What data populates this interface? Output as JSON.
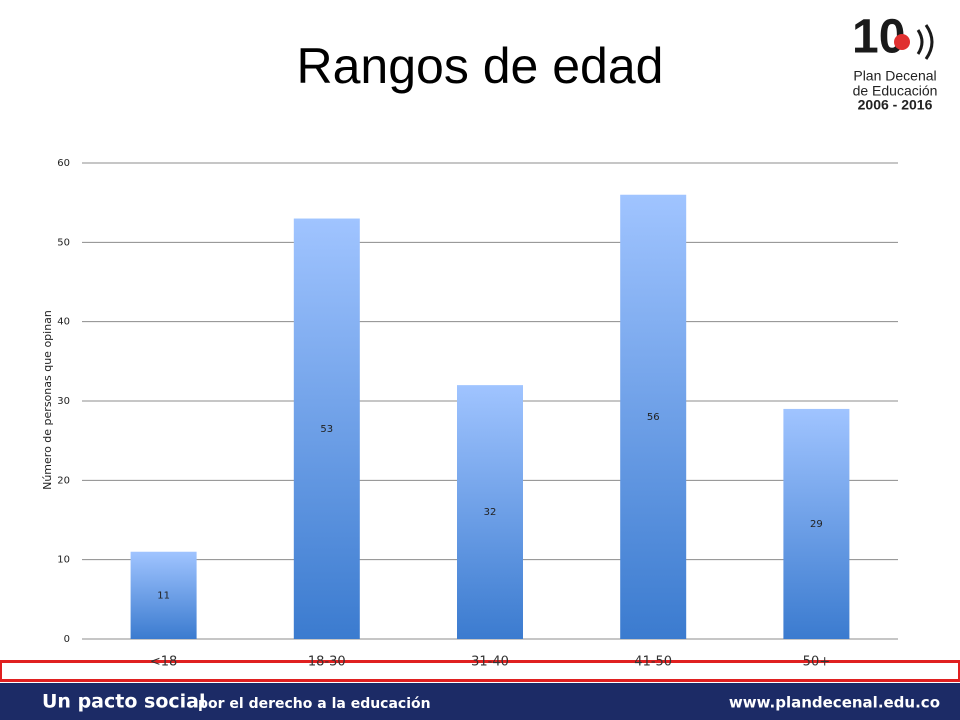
{
  "chart_data": {
    "type": "bar",
    "title": "Rangos de edad",
    "y_label": "Número de personas que opinan",
    "categories": [
      "<18",
      "18-30",
      "31-40",
      "41-50",
      "50+"
    ],
    "values": [
      11,
      53,
      32,
      56,
      29
    ],
    "gradient": [
      "#a0c4ff",
      "#3b7bcf"
    ],
    "ylim": [
      0,
      60
    ],
    "yticks": [
      0,
      10,
      20,
      30,
      40,
      50,
      60
    ],
    "grid": true
  },
  "logo": {
    "number": "10",
    "lines": [
      "Plan Decenal",
      "de Educación",
      "2006 - 2016"
    ]
  },
  "footer": {
    "slogan_bold": "Un pacto social",
    "slogan_rest": "por el derecho a la educación",
    "url": "www.plandecenal.edu.co"
  }
}
